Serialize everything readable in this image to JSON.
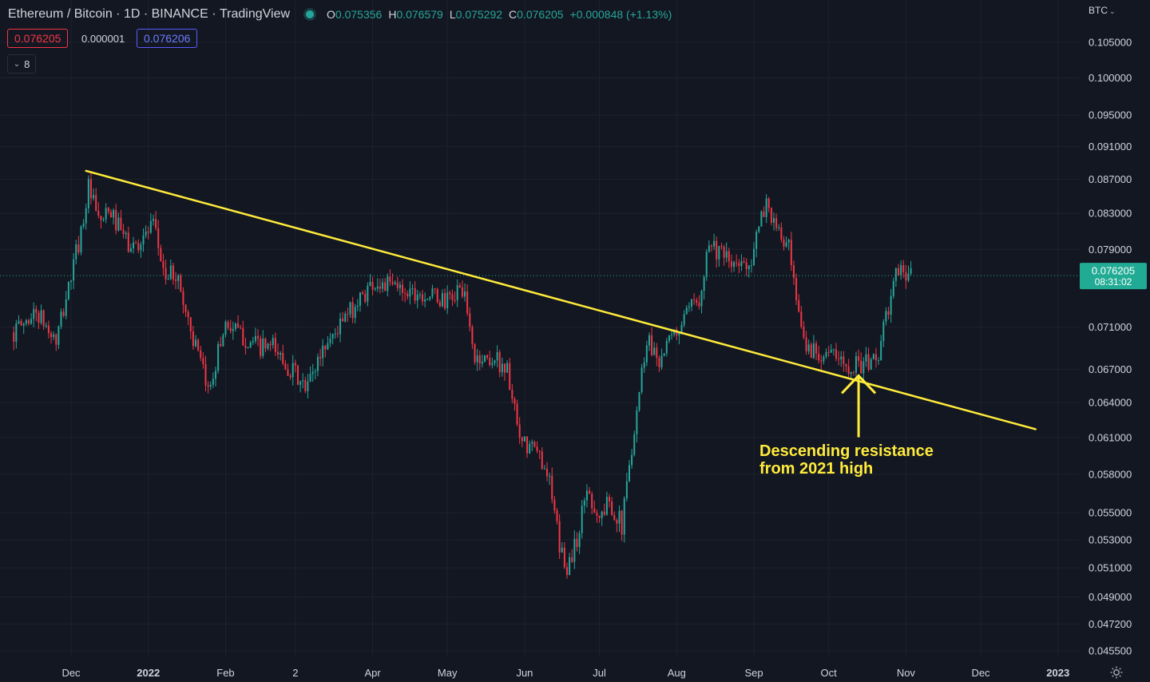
{
  "header": {
    "symbol": "Ethereum / Bitcoin",
    "interval": "1D",
    "exchange": "BINANCE",
    "source": "TradingView",
    "open_label": "O",
    "open": "0.075356",
    "high_label": "H",
    "high": "0.076579",
    "low_label": "L",
    "low": "0.075292",
    "close_label": "C",
    "close": "0.076205",
    "change": "+0.000848 (+1.13%)"
  },
  "trade": {
    "sell": "0.076205",
    "spread": "0.000001",
    "buy": "0.076206"
  },
  "indicators_count": "8",
  "currency": "BTC",
  "colors": {
    "background": "#131722",
    "grid": "#1e222d",
    "text": "#d1d4dc",
    "up": "#26a69a",
    "down": "#f23645",
    "annotation": "#ffeb3b",
    "last_price": "#22ab94"
  },
  "chart_data": {
    "type": "candlestick",
    "scale": "log",
    "grid": true,
    "y_ticks": [
      "0.105000",
      "0.100000",
      "0.095000",
      "0.091000",
      "0.087000",
      "0.083000",
      "0.079000",
      "0.071000",
      "0.067000",
      "0.064000",
      "0.061000",
      "0.058000",
      "0.055000",
      "0.053000",
      "0.051000",
      "0.049000",
      "0.047200",
      "0.045500"
    ],
    "x_ticks": [
      {
        "label": "Dec",
        "date": "2021-12-01",
        "bold": false
      },
      {
        "label": "2022",
        "date": "2022-01-01",
        "bold": true
      },
      {
        "label": "Feb",
        "date": "2022-02-01",
        "bold": false
      },
      {
        "label": "2",
        "date": "2022-03-01",
        "bold": false
      },
      {
        "label": "Apr",
        "date": "2022-04-01",
        "bold": false
      },
      {
        "label": "May",
        "date": "2022-05-01",
        "bold": false
      },
      {
        "label": "Jun",
        "date": "2022-06-01",
        "bold": false
      },
      {
        "label": "Jul",
        "date": "2022-07-01",
        "bold": false
      },
      {
        "label": "Aug",
        "date": "2022-08-01",
        "bold": false
      },
      {
        "label": "Sep",
        "date": "2022-09-01",
        "bold": false
      },
      {
        "label": "Oct",
        "date": "2022-10-01",
        "bold": false
      },
      {
        "label": "Nov",
        "date": "2022-11-01",
        "bold": false
      },
      {
        "label": "Dec",
        "date": "2022-12-01",
        "bold": false
      },
      {
        "label": "2023",
        "date": "2023-01-01",
        "bold": true
      }
    ],
    "close_anchors": [
      {
        "date": "2021-11-08",
        "close": 0.0705
      },
      {
        "date": "2021-11-17",
        "close": 0.0725
      },
      {
        "date": "2021-11-25",
        "close": 0.0695
      },
      {
        "date": "2021-11-30",
        "close": 0.075
      },
      {
        "date": "2021-12-05",
        "close": 0.081
      },
      {
        "date": "2021-12-08",
        "close": 0.086
      },
      {
        "date": "2021-12-12",
        "close": 0.082
      },
      {
        "date": "2021-12-17",
        "close": 0.083
      },
      {
        "date": "2021-12-25",
        "close": 0.079
      },
      {
        "date": "2022-01-03",
        "close": 0.0815
      },
      {
        "date": "2022-01-08",
        "close": 0.076
      },
      {
        "date": "2022-01-12",
        "close": 0.0765
      },
      {
        "date": "2022-01-20",
        "close": 0.069
      },
      {
        "date": "2022-01-25",
        "close": 0.065
      },
      {
        "date": "2022-02-01",
        "close": 0.0715
      },
      {
        "date": "2022-02-08",
        "close": 0.07
      },
      {
        "date": "2022-02-15",
        "close": 0.069
      },
      {
        "date": "2022-02-20",
        "close": 0.069
      },
      {
        "date": "2022-03-01",
        "close": 0.0665
      },
      {
        "date": "2022-03-05",
        "close": 0.065
      },
      {
        "date": "2022-03-12",
        "close": 0.069
      },
      {
        "date": "2022-03-20",
        "close": 0.0715
      },
      {
        "date": "2022-04-01",
        "close": 0.0755
      },
      {
        "date": "2022-04-10",
        "close": 0.075
      },
      {
        "date": "2022-04-20",
        "close": 0.0745
      },
      {
        "date": "2022-05-01",
        "close": 0.0735
      },
      {
        "date": "2022-05-07",
        "close": 0.075
      },
      {
        "date": "2022-05-12",
        "close": 0.068
      },
      {
        "date": "2022-05-20",
        "close": 0.068
      },
      {
        "date": "2022-05-25",
        "close": 0.067
      },
      {
        "date": "2022-05-30",
        "close": 0.0605
      },
      {
        "date": "2022-06-05",
        "close": 0.06
      },
      {
        "date": "2022-06-10",
        "close": 0.0585
      },
      {
        "date": "2022-06-15",
        "close": 0.0525
      },
      {
        "date": "2022-06-18",
        "close": 0.051
      },
      {
        "date": "2022-06-22",
        "close": 0.053
      },
      {
        "date": "2022-06-26",
        "close": 0.057
      },
      {
        "date": "2022-07-01",
        "close": 0.0545
      },
      {
        "date": "2022-07-05",
        "close": 0.056
      },
      {
        "date": "2022-07-10",
        "close": 0.054
      },
      {
        "date": "2022-07-15",
        "close": 0.062
      },
      {
        "date": "2022-07-20",
        "close": 0.07
      },
      {
        "date": "2022-07-25",
        "close": 0.068
      },
      {
        "date": "2022-08-01",
        "close": 0.0705
      },
      {
        "date": "2022-08-10",
        "close": 0.074
      },
      {
        "date": "2022-08-14",
        "close": 0.08
      },
      {
        "date": "2022-08-20",
        "close": 0.078
      },
      {
        "date": "2022-08-25",
        "close": 0.077
      },
      {
        "date": "2022-08-31",
        "close": 0.078
      },
      {
        "date": "2022-09-06",
        "close": 0.0845
      },
      {
        "date": "2022-09-10",
        "close": 0.081
      },
      {
        "date": "2022-09-15",
        "close": 0.079
      },
      {
        "date": "2022-09-18",
        "close": 0.073
      },
      {
        "date": "2022-09-22",
        "close": 0.069
      },
      {
        "date": "2022-10-01",
        "close": 0.0685
      },
      {
        "date": "2022-10-07",
        "close": 0.0675
      },
      {
        "date": "2022-10-12",
        "close": 0.0675
      },
      {
        "date": "2022-10-17",
        "close": 0.0675
      },
      {
        "date": "2022-10-21",
        "close": 0.0685
      },
      {
        "date": "2022-10-25",
        "close": 0.073
      },
      {
        "date": "2022-10-29",
        "close": 0.077
      },
      {
        "date": "2022-11-01",
        "close": 0.0765
      },
      {
        "date": "2022-11-03",
        "close": 0.0762
      }
    ],
    "last_price": "0.076205",
    "countdown": "08:31:02",
    "trendline": {
      "from": {
        "date": "2021-12-07",
        "price": 0.088
      },
      "to": {
        "date": "2022-12-23",
        "price": 0.0617
      }
    },
    "annotation": {
      "lines": [
        "Descending resistance",
        "from 2021 high"
      ],
      "arrow_target": {
        "date": "2022-10-13",
        "price": 0.0667
      }
    }
  }
}
